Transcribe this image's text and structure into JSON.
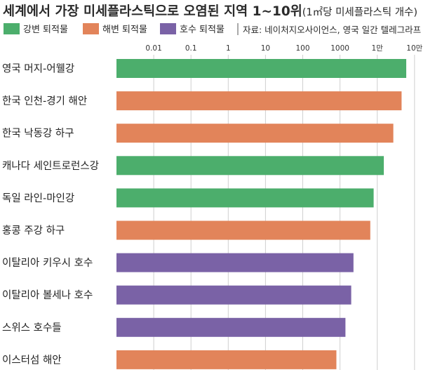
{
  "title": "세계에서 가장 미세플라스틱으로 오염된 지역 1~10위",
  "subtitle": "(1㎡당 미세플라스틱 개수)",
  "source": "자료: 네이처지오사이언스, 영국 일간 텔레그라프",
  "colors": {
    "river": "#4cae6c",
    "coast": "#e2845a",
    "lake": "#7a62a6",
    "grid": "#cfcfcf",
    "background": "#ffffff",
    "text": "#222222"
  },
  "chart_data": {
    "type": "bar",
    "orientation": "horizontal",
    "x_scale": "log",
    "xlim": [
      0.001,
      100000
    ],
    "ticks": [
      {
        "value": 0.01,
        "label": "0.01"
      },
      {
        "value": 0.1,
        "label": "0.1"
      },
      {
        "value": 1,
        "label": "1"
      },
      {
        "value": 10,
        "label": "10"
      },
      {
        "value": 100,
        "label": "100"
      },
      {
        "value": 1000,
        "label": "1000"
      },
      {
        "value": 10000,
        "label": "1만"
      },
      {
        "value": 100000,
        "label": "10만"
      }
    ],
    "legend": [
      {
        "key": "river",
        "label": "강변 퇴적물"
      },
      {
        "key": "coast",
        "label": "해변 퇴적물"
      },
      {
        "key": "lake",
        "label": "호수 퇴적물"
      }
    ],
    "bars": [
      {
        "category": "영국 머지-어웰강",
        "value": 60000,
        "group": "river"
      },
      {
        "category": "한국 인천-경기 해안",
        "value": 45000,
        "group": "coast"
      },
      {
        "category": "한국 낙동강 하구",
        "value": 27000,
        "group": "coast"
      },
      {
        "category": "캐나다 세인트로런스강",
        "value": 15000,
        "group": "river"
      },
      {
        "category": "독일 라인-마인강",
        "value": 8000,
        "group": "river"
      },
      {
        "category": "홍콩 주강 하구",
        "value": 6500,
        "group": "coast"
      },
      {
        "category": "이탈리아 키우시 호수",
        "value": 2300,
        "group": "lake"
      },
      {
        "category": "이탈리아 볼세나 호수",
        "value": 2000,
        "group": "lake"
      },
      {
        "category": "스위스 호수들",
        "value": 1400,
        "group": "lake"
      },
      {
        "category": "이스터섬 해안",
        "value": 800,
        "group": "coast"
      }
    ]
  }
}
